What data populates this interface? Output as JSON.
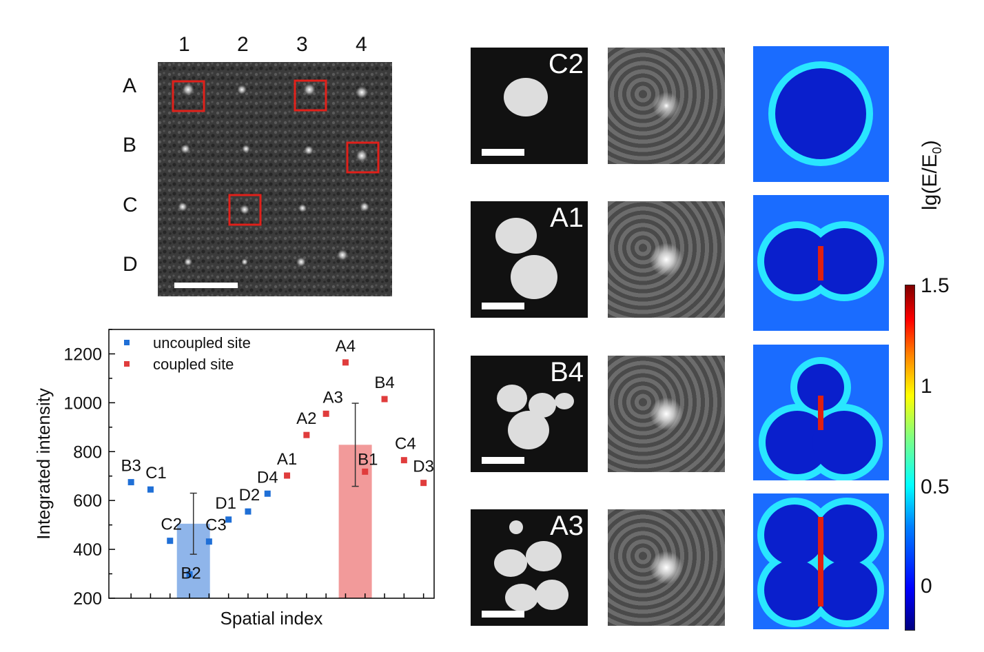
{
  "grid": {
    "col_labels": [
      "1",
      "2",
      "3",
      "4"
    ],
    "row_labels": [
      "A",
      "B",
      "C",
      "D"
    ],
    "highlighted_sites": [
      "A1",
      "A3",
      "B4",
      "C2"
    ],
    "highlight_color": "#e0201a"
  },
  "chart_data": {
    "type": "scatter",
    "xlabel": "Spatial index",
    "ylabel": "Integrated intensity",
    "ylim": [
      200,
      1300
    ],
    "yticks": [
      200,
      400,
      600,
      800,
      1000,
      1200
    ],
    "legend": {
      "position": "top-left"
    },
    "series": [
      {
        "name": "uncoupled site",
        "color": "#1f6fd6",
        "points": [
          {
            "label": "B3",
            "index": 1,
            "value": 675
          },
          {
            "label": "C1",
            "index": 2,
            "value": 645
          },
          {
            "label": "C2",
            "index": 3,
            "value": 435
          },
          {
            "label": "B2",
            "index": 4,
            "value": 298
          },
          {
            "label": "C3",
            "index": 5,
            "value": 432
          },
          {
            "label": "D1",
            "index": 6,
            "value": 522
          },
          {
            "label": "D2",
            "index": 7,
            "value": 555
          },
          {
            "label": "D4",
            "index": 8,
            "value": 628
          }
        ],
        "bar": {
          "mean": 505,
          "error": 125,
          "color": "#8fb5ea"
        }
      },
      {
        "name": "coupled site",
        "color": "#e03c3c",
        "points": [
          {
            "label": "A1",
            "index": 9,
            "value": 702
          },
          {
            "label": "A2",
            "index": 10,
            "value": 868
          },
          {
            "label": "A3",
            "index": 11,
            "value": 955
          },
          {
            "label": "A4",
            "index": 12,
            "value": 1165
          },
          {
            "label": "B1",
            "index": 13,
            "value": 718
          },
          {
            "label": "B4",
            "index": 14,
            "value": 1015
          },
          {
            "label": "C4",
            "index": 15,
            "value": 765
          },
          {
            "label": "D3",
            "index": 16,
            "value": 672
          }
        ],
        "bar": {
          "mean": 828,
          "error": 170,
          "color": "#f29a9a"
        }
      }
    ]
  },
  "panels": {
    "rows": [
      {
        "label": "C2"
      },
      {
        "label": "A1"
      },
      {
        "label": "B4"
      },
      {
        "label": "A3"
      }
    ]
  },
  "colorbar": {
    "title_main": "lg(E/E",
    "title_sub": "0",
    "title_end": ")",
    "ticks": [
      "1.5",
      "1",
      "0.5",
      "0"
    ],
    "colormap": "jet"
  }
}
